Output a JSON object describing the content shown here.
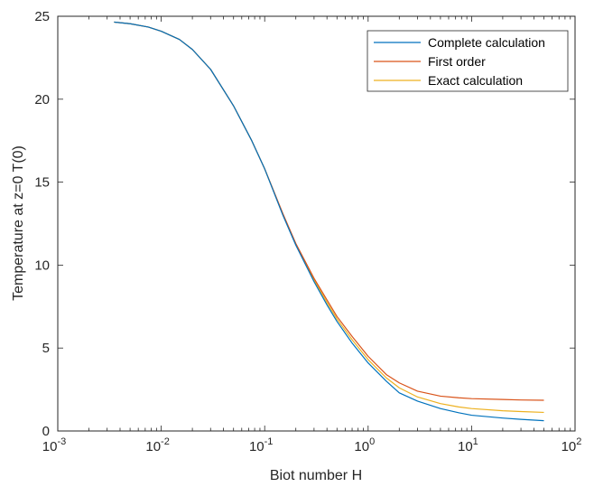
{
  "chart_data": {
    "type": "line",
    "title": "",
    "xlabel": "Biot number H",
    "ylabel": "Temperature at z=0 T(0)",
    "xscale": "log",
    "xlim": [
      0.001,
      100
    ],
    "ylim": [
      0,
      25
    ],
    "x_ticks": [
      {
        "base": "10",
        "exp": "-3",
        "value": 0.001
      },
      {
        "base": "10",
        "exp": "-2",
        "value": 0.01
      },
      {
        "base": "10",
        "exp": "-1",
        "value": 0.1
      },
      {
        "base": "10",
        "exp": "0",
        "value": 1
      },
      {
        "base": "10",
        "exp": "1",
        "value": 10
      },
      {
        "base": "10",
        "exp": "2",
        "value": 100
      }
    ],
    "y_ticks": [
      "0",
      "5",
      "10",
      "15",
      "20",
      "25"
    ],
    "grid": false,
    "legend_position": "top-right",
    "x": [
      0.0035,
      0.005,
      0.0075,
      0.01,
      0.015,
      0.02,
      0.03,
      0.05,
      0.075,
      0.1,
      0.15,
      0.2,
      0.3,
      0.4,
      0.5,
      0.7,
      1.0,
      1.5,
      2.0,
      3.0,
      5.0,
      7.5,
      10,
      20,
      30,
      50
    ],
    "series": [
      {
        "name": "Complete calculation",
        "color": "#0072BD",
        "values": [
          24.65,
          24.55,
          24.35,
          24.1,
          23.6,
          23.0,
          21.8,
          19.6,
          17.5,
          15.8,
          13.0,
          11.2,
          9.0,
          7.6,
          6.6,
          5.3,
          4.1,
          3.0,
          2.3,
          1.8,
          1.35,
          1.1,
          0.95,
          0.78,
          0.7,
          0.62
        ]
      },
      {
        "name": "First order",
        "color": "#D95319",
        "values": [
          24.65,
          24.55,
          24.35,
          24.1,
          23.6,
          23.0,
          21.8,
          19.6,
          17.5,
          15.8,
          13.1,
          11.3,
          9.2,
          7.9,
          6.9,
          5.7,
          4.5,
          3.4,
          2.9,
          2.4,
          2.1,
          2.0,
          1.95,
          1.9,
          1.87,
          1.85
        ]
      },
      {
        "name": "Exact calculation",
        "color": "#EDB120",
        "values": [
          24.65,
          24.55,
          24.35,
          24.1,
          23.6,
          23.0,
          21.8,
          19.6,
          17.5,
          15.8,
          13.05,
          11.25,
          9.1,
          7.75,
          6.75,
          5.5,
          4.3,
          3.2,
          2.6,
          2.05,
          1.65,
          1.45,
          1.35,
          1.22,
          1.17,
          1.12
        ]
      }
    ]
  }
}
